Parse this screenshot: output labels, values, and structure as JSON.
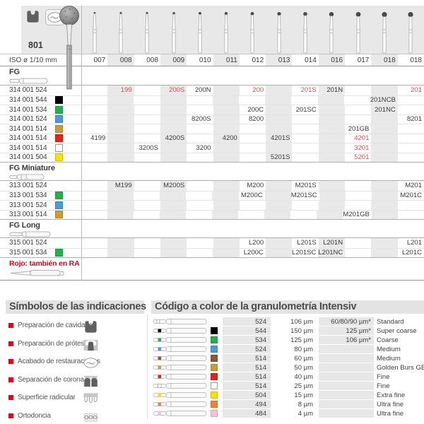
{
  "catalog": {
    "figure": "801",
    "header_icons": [
      {
        "icon": "cavity-prep-icon"
      },
      {
        "icon": "restoration-finishing-icon"
      }
    ],
    "iso_label": "ISO ø 1/10 mm",
    "iso_values": [
      "007",
      "008",
      "008",
      "009",
      "010",
      "011",
      "012",
      "013",
      "014",
      "016",
      "017",
      "018",
      "018"
    ],
    "sections": [
      {
        "label": "FG",
        "icon": "fg-bur-icon",
        "rows": [
          {
            "code": "314 001 524",
            "square": null,
            "values": [
              {
                "col": 2,
                "text": "199",
                "red": true
              },
              {
                "col": 4,
                "text": "200S",
                "red": true
              },
              {
                "col": 5,
                "text": "200N",
                "red": false
              },
              {
                "col": 7,
                "text": "200",
                "red": true
              },
              {
                "col": 9,
                "text": "201S",
                "red": true
              },
              {
                "col": 10,
                "text": "201N",
                "red": false
              },
              {
                "col": 13,
                "text": "201",
                "red": true
              }
            ]
          },
          {
            "code": "314 001 544",
            "square": "#000000",
            "values": [
              {
                "col": 12,
                "text": "201NCB",
                "red": false
              }
            ]
          },
          {
            "code": "314 001 534",
            "square": "#22b14c",
            "values": [
              {
                "col": 7,
                "text": "200C",
                "red": false
              },
              {
                "col": 9,
                "text": "201SC",
                "red": false
              },
              {
                "col": 12,
                "text": "201NC",
                "red": false
              }
            ]
          },
          {
            "code": "314 001 524",
            "square": "#4a9ade",
            "values": [
              {
                "col": 5,
                "text": "8200S",
                "red": false
              },
              {
                "col": 7,
                "text": "8200",
                "red": false
              },
              {
                "col": 13,
                "text": "8201",
                "red": false
              }
            ]
          },
          {
            "code": "314 001 514",
            "square": "#c99c3a",
            "values": [
              {
                "col": 11,
                "text": "201GB",
                "red": false
              }
            ]
          },
          {
            "code": "314 001 514",
            "square": "#e2231a",
            "values": [
              {
                "col": 1,
                "text": "4199",
                "red": false
              },
              {
                "col": 4,
                "text": "4200S",
                "red": false
              },
              {
                "col": 6,
                "text": "4200",
                "red": false
              },
              {
                "col": 8,
                "text": "4201S",
                "red": false
              },
              {
                "col": 11,
                "text": "4201",
                "red": true
              }
            ]
          },
          {
            "code": "314 001 514",
            "square": "#ffffff",
            "values": [
              {
                "col": 3,
                "text": "3200S",
                "red": false
              },
              {
                "col": 5,
                "text": "3200",
                "red": false
              },
              {
                "col": 11,
                "text": "3201",
                "red": true
              }
            ]
          },
          {
            "code": "314 001 504",
            "square": "#ffe000",
            "values": [
              {
                "col": 8,
                "text": "5201S",
                "red": false
              },
              {
                "col": 11,
                "text": "5201",
                "red": true
              }
            ]
          }
        ]
      },
      {
        "label": "FG Miniature",
        "icon": "fg-miniature-bur-icon",
        "rows": [
          {
            "code": "313 001 524",
            "square": null,
            "values": [
              {
                "col": 2,
                "text": "M199",
                "red": false
              },
              {
                "col": 4,
                "text": "M200S",
                "red": false
              },
              {
                "col": 7,
                "text": "M200",
                "red": false
              },
              {
                "col": 9,
                "text": "M201S",
                "red": false
              },
              {
                "col": 13,
                "text": "M201",
                "red": false
              }
            ]
          },
          {
            "code": "313 001 534",
            "square": "#22b14c",
            "values": [
              {
                "col": 7,
                "text": "M200C",
                "red": false
              },
              {
                "col": 9,
                "text": "M201SC",
                "red": false
              },
              {
                "col": 13,
                "text": "M201C",
                "red": false
              }
            ]
          },
          {
            "code": "313 001 524",
            "square": "#4a9ade",
            "values": []
          },
          {
            "code": "313 001 514",
            "square": "#c99c3a",
            "values": [
              {
                "col": 11,
                "text": "M201GB",
                "red": false
              }
            ]
          }
        ]
      },
      {
        "label": "FG Long",
        "icon": "fg-long-bur-icon",
        "rows": [
          {
            "code": "315 001 524",
            "square": null,
            "values": [
              {
                "col": 7,
                "text": "L200",
                "red": false
              },
              {
                "col": 9,
                "text": "L201S",
                "red": false
              },
              {
                "col": 10,
                "text": "L201N",
                "red": false
              },
              {
                "col": 13,
                "text": "L201",
                "red": false
              }
            ]
          },
          {
            "code": "315 001 534",
            "square": "#22b14c",
            "values": [
              {
                "col": 7,
                "text": "L200C",
                "red": false
              },
              {
                "col": 9,
                "text": "L201SC",
                "red": false
              },
              {
                "col": 10,
                "text": "L201NC",
                "red": false
              },
              {
                "col": 13,
                "text": "L201C",
                "red": false
              }
            ]
          }
        ]
      }
    ],
    "footnote": {
      "text": "Rojo: también en RA",
      "icon": "ra-bur-icon"
    }
  },
  "symbols": {
    "title": "Símbolos de las indicaciones",
    "bullet_color": "#e2001a",
    "items": [
      {
        "label": "Preparación de cavidades",
        "icon": "cavity-prep-icon"
      },
      {
        "label": "Preparación de prótesis",
        "icon": "prosthesis-prep-icon"
      },
      {
        "label": "Acabado de restauraciones",
        "icon": "restoration-finishing-icon"
      },
      {
        "label": "Separación de coronas",
        "icon": "crown-separation-icon"
      },
      {
        "label": "Superficie radicular",
        "icon": "root-surface-icon"
      },
      {
        "label": "Ortodoncia",
        "icon": "orthodontics-icon"
      }
    ]
  },
  "grit": {
    "title": "Código a color de la granulometría Intensiv",
    "rows": [
      {
        "color": null,
        "code": "524",
        "size": "106 µm",
        "alt": "60/80/90 µm*",
        "name": "Standard"
      },
      {
        "color": "#000000",
        "code": "544",
        "size": "150 µm",
        "alt": "125 µm*",
        "name": "Super coarse"
      },
      {
        "color": "#22b14c",
        "code": "534",
        "size": "125 µm",
        "alt": "106 µm*",
        "name": "Coarse"
      },
      {
        "color": "#4a9ade",
        "code": "524",
        "size": "80 µm",
        "alt": "",
        "name": "Medium"
      },
      {
        "color": "#8a5a33",
        "code": "514",
        "size": "60 µm",
        "alt": "",
        "name": "Medium"
      },
      {
        "color": "#c99c3a",
        "code": "514",
        "size": "50 µm",
        "alt": "",
        "name": "Golden Burs GB"
      },
      {
        "color": "#e2231a",
        "code": "514",
        "size": "40 µm",
        "alt": "",
        "name": "Fine"
      },
      {
        "color": "#ffffff",
        "code": "514",
        "size": "25 µm",
        "alt": "",
        "name": "Fine"
      },
      {
        "color": "#ffe000",
        "code": "504",
        "size": "15 µm",
        "alt": "",
        "name": "Extra fine"
      },
      {
        "color": "#ef8532",
        "code": "494",
        "size": "8 µm",
        "alt": "",
        "name": "Ultra fine"
      },
      {
        "color": "#f6c3d0",
        "code": "484",
        "size": "4 µm",
        "alt": "",
        "name": "Ultra fine"
      }
    ]
  }
}
